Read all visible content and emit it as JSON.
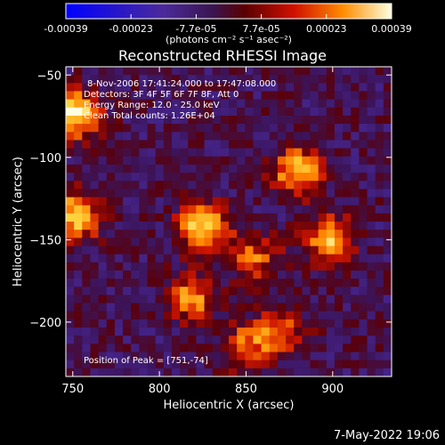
{
  "chart_data": {
    "type": "heatmap",
    "title": "Reconstructed RHESSI Image",
    "xlabel": "Heliocentric X (arcsec)",
    "ylabel": "Heliocentric Y (arcsec)",
    "xlim": [
      746,
      934
    ],
    "ylim": [
      -233,
      -45
    ],
    "x_ticks": [
      750,
      800,
      850,
      900
    ],
    "y_ticks": [
      -50,
      -100,
      -150,
      -200
    ],
    "colorbar": {
      "min": -0.00039,
      "max": 0.00039,
      "tick_labels": [
        "-0.00039",
        "-0.00023",
        "-7.7e-05",
        "7.7e-05",
        "0.00023",
        "0.00039"
      ],
      "units": "(photons cm⁻² s⁻¹ asec⁻²)"
    },
    "annotations": [
      "8-Nov-2006 17:41:24.000 to 17:47:08.000",
      "Detectors: 3F 4F 5F 6F 7F 8F, Att 0",
      "Energy Range: 12.0 - 25.0 keV",
      "Clean    Total counts: 1.26E+04"
    ],
    "peak_label": "Position of Peak = [751,-74]",
    "sources": [
      {
        "x": 751,
        "y": -74,
        "intensity": 1.0
      },
      {
        "x": 752,
        "y": -136,
        "intensity": 0.9
      },
      {
        "x": 825,
        "y": -143,
        "intensity": 0.95
      },
      {
        "x": 880,
        "y": -108,
        "intensity": 0.85
      },
      {
        "x": 898,
        "y": -150,
        "intensity": 0.8
      },
      {
        "x": 818,
        "y": -185,
        "intensity": 0.7
      },
      {
        "x": 850,
        "y": -215,
        "intensity": 0.6
      },
      {
        "x": 855,
        "y": -160,
        "intensity": 0.55
      },
      {
        "x": 870,
        "y": -205,
        "intensity": 0.55
      }
    ]
  },
  "footer": "7-May-2022 19:06"
}
